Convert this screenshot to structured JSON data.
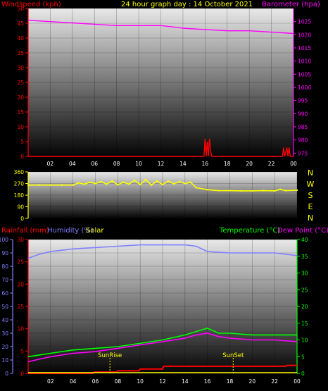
{
  "chart_data": [
    {
      "type": "line",
      "title": "24 hour graph day : 14 October 2021",
      "left_axis": {
        "label": "Windspeed (kph)",
        "color": "#ff0000",
        "ticks": [
          0,
          5,
          10,
          15,
          20,
          25,
          30,
          35,
          40,
          45,
          50
        ],
        "ylim": [
          0,
          50
        ]
      },
      "right_axis": {
        "label": "Barometer (hpa)",
        "color": "#ff00ff",
        "ticks": [
          975,
          980,
          985,
          990,
          995,
          1000,
          1005,
          1010,
          1015,
          1020,
          1025
        ],
        "ylim": [
          973.75,
          1030
        ]
      },
      "x_ticks": [
        "02",
        "04",
        "06",
        "08",
        "10",
        "12",
        "14",
        "16",
        "18",
        "20",
        "22",
        "00"
      ],
      "x_range_hours": [
        0,
        24
      ],
      "series": [
        {
          "name": "Barometer",
          "axis": "right",
          "color": "#ff00ff",
          "x": [
            0,
            2,
            4,
            6,
            8,
            10,
            12,
            13,
            14,
            16,
            18,
            20,
            22,
            24
          ],
          "y": [
            1025.5,
            1025,
            1024.5,
            1024,
            1023.5,
            1023.5,
            1023.5,
            1023,
            1022.5,
            1022,
            1021.5,
            1021.5,
            1021,
            1020.5
          ]
        },
        {
          "name": "Windspeed",
          "axis": "left",
          "color": "#ff0000",
          "x": [
            0,
            15.9,
            16.0,
            16.1,
            16.2,
            16.3,
            16.4,
            16.5,
            16.6,
            23.0,
            23.1,
            23.2,
            23.4,
            23.5,
            23.6,
            23.7,
            24
          ],
          "y": [
            0,
            0,
            6,
            0,
            5,
            0,
            6,
            2,
            0,
            0,
            3,
            0,
            3,
            0,
            3,
            0,
            0
          ]
        }
      ]
    },
    {
      "type": "scatter",
      "title": "",
      "left_axis": {
        "label": "",
        "color": "#ffff00",
        "ticks": [
          0,
          90,
          180,
          270,
          360
        ],
        "ylim": [
          0,
          360
        ]
      },
      "compass_labels": [
        "N",
        "W",
        "S",
        "E",
        "N"
      ],
      "x_range_hours": [
        0,
        24
      ],
      "series": [
        {
          "name": "Wind direction",
          "color": "#ffff00",
          "x": [
            0,
            1,
            2,
            3,
            4,
            4.5,
            5,
            5.5,
            6,
            6.5,
            7,
            7.5,
            8,
            8.5,
            9,
            9.5,
            10,
            10.5,
            11,
            11.5,
            12,
            12.5,
            13,
            13.5,
            14,
            14.5,
            15,
            16,
            17,
            18,
            19,
            20,
            21,
            22,
            22.5,
            23,
            24
          ],
          "y": [
            258,
            258,
            258,
            258,
            258,
            275,
            265,
            280,
            270,
            285,
            265,
            290,
            260,
            280,
            265,
            295,
            262,
            300,
            258,
            290,
            262,
            288,
            268,
            285,
            270,
            280,
            238,
            222,
            215,
            215,
            213,
            213,
            215,
            213,
            225,
            215,
            218
          ]
        }
      ]
    },
    {
      "type": "line",
      "title": "",
      "header_labels": {
        "rainfall": "Rainfall (mm)",
        "humidity": "Humidity (%)",
        "solar": "Solar",
        "temperature": "Temperature (°C)",
        "dewpoint": "Dew Point (°C)"
      },
      "left_axis_humidity": {
        "color": "#8080ff",
        "ticks": [
          0,
          10,
          20,
          30,
          40,
          50,
          60,
          70,
          80,
          90,
          100
        ],
        "ylim": [
          0,
          100
        ]
      },
      "left_axis_rain": {
        "color": "#ff0000",
        "ticks": [
          0,
          5,
          10,
          15,
          20,
          25,
          30
        ],
        "ylim": [
          0,
          30
        ]
      },
      "right_axis": {
        "color": "#00ff00",
        "ticks": [
          0,
          5,
          10,
          15,
          20,
          25,
          30,
          35,
          40
        ],
        "ylim": [
          0,
          40
        ]
      },
      "x_ticks": [
        "02",
        "04",
        "06",
        "08",
        "10",
        "12",
        "14",
        "16",
        "18",
        "20",
        "22",
        "00"
      ],
      "x_range_hours": [
        0,
        24
      ],
      "annotations": [
        {
          "text": "SunRise",
          "hour": 7.3
        },
        {
          "text": "SunSet",
          "hour": 18.3
        }
      ],
      "series": [
        {
          "name": "Humidity",
          "axis": "humidity",
          "color": "#8080ff",
          "x": [
            0,
            1,
            2,
            4,
            6,
            8,
            10,
            12,
            14,
            15,
            16,
            18,
            20,
            22,
            24
          ],
          "y": [
            86,
            89,
            91,
            93,
            94,
            95,
            96,
            96,
            96,
            95,
            91,
            90,
            90,
            90,
            88
          ]
        },
        {
          "name": "Temperature",
          "axis": "temp",
          "color": "#00ff00",
          "x": [
            0,
            2,
            4,
            6,
            8,
            10,
            12,
            14,
            15,
            16,
            17,
            18,
            20,
            22,
            24
          ],
          "y": [
            5,
            6,
            7,
            7.5,
            8,
            9,
            10,
            11.5,
            12.5,
            13.5,
            12,
            12,
            11.5,
            11.5,
            11.5
          ]
        },
        {
          "name": "Dew Point",
          "axis": "temp",
          "color": "#ff00ff",
          "x": [
            0,
            2,
            4,
            6,
            8,
            10,
            12,
            14,
            15,
            16,
            17,
            18,
            20,
            22,
            24
          ],
          "y": [
            3.5,
            5,
            6,
            6.5,
            7.5,
            8.5,
            9.5,
            10.5,
            11.5,
            12,
            11,
            10.5,
            10,
            10,
            9.5
          ]
        },
        {
          "name": "Rainfall",
          "axis": "rain",
          "color": "#ff0000",
          "x": [
            0,
            5.8,
            5.9,
            7.9,
            8,
            9.9,
            10,
            12,
            12.1,
            23,
            23.1,
            24
          ],
          "y": [
            0,
            0,
            0.3,
            0.3,
            0.6,
            0.6,
            1.0,
            1.0,
            1.6,
            1.6,
            1.8,
            1.8
          ]
        },
        {
          "name": "Solar",
          "axis": "solar",
          "color": "#ffff00",
          "x": [
            0,
            7.3,
            24
          ],
          "y": [
            0,
            0,
            0
          ]
        }
      ]
    }
  ]
}
